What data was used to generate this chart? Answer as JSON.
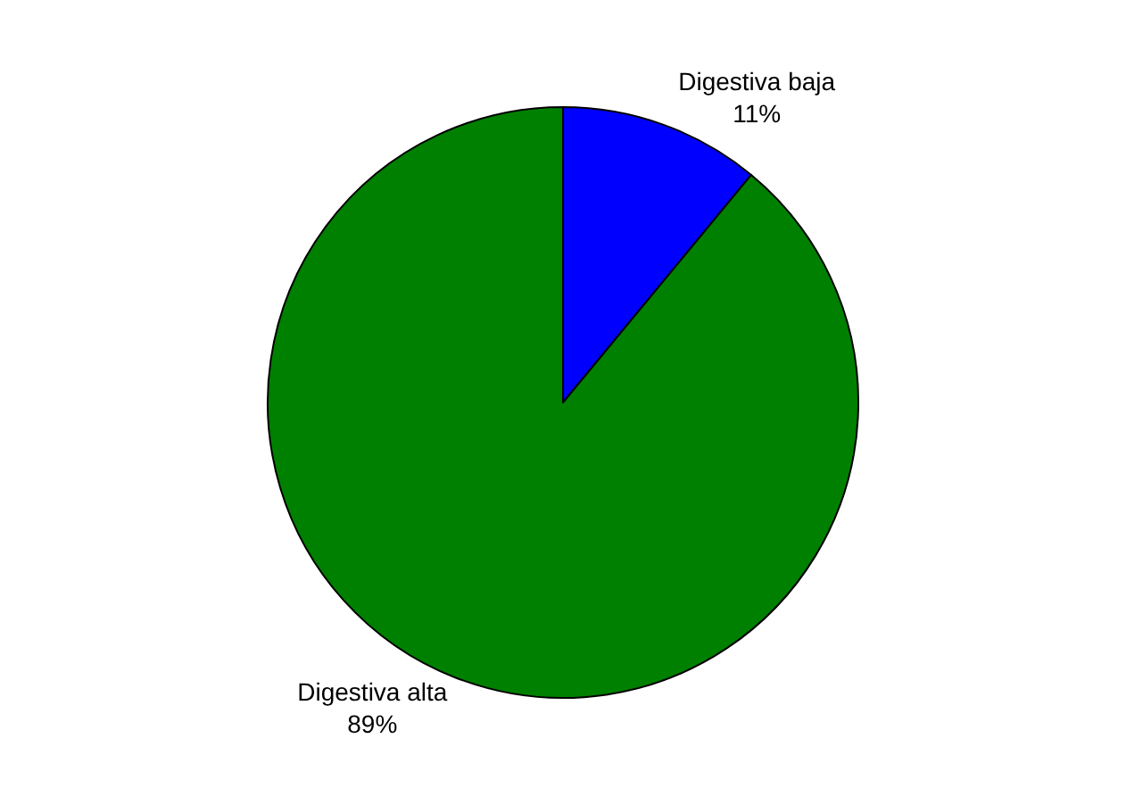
{
  "chart_data": {
    "type": "pie",
    "categories": [
      "Digestiva baja",
      "Digestiva alta"
    ],
    "values": [
      11,
      89
    ],
    "value_labels": [
      "11%",
      "89%"
    ],
    "colors": [
      "#0000ff",
      "#008000"
    ],
    "legend": false
  }
}
